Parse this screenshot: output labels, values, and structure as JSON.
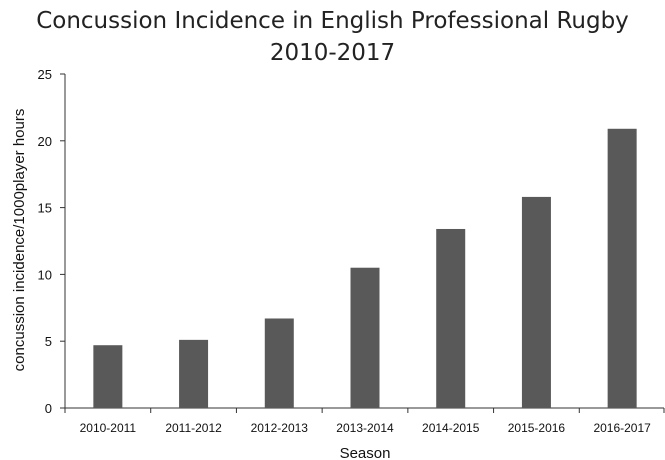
{
  "chart_data": {
    "type": "bar",
    "title_lines": [
      "Concussion Incidence in English Professional Rugby",
      "2010-2017"
    ],
    "xlabel": "Season",
    "ylabel": "concussion incidence/1000player hours",
    "categories": [
      "2010-2011",
      "2011-2012",
      "2012-2013",
      "2013-2014",
      "2014-2015",
      "2015-2016",
      "2016-2017"
    ],
    "values": [
      4.7,
      5.1,
      6.7,
      10.5,
      13.4,
      15.8,
      20.9
    ],
    "ylim": [
      0,
      25
    ],
    "yticks": [
      0,
      5,
      10,
      15,
      20,
      25
    ],
    "grid": false,
    "legend": "none",
    "bar_color": "#595959"
  }
}
